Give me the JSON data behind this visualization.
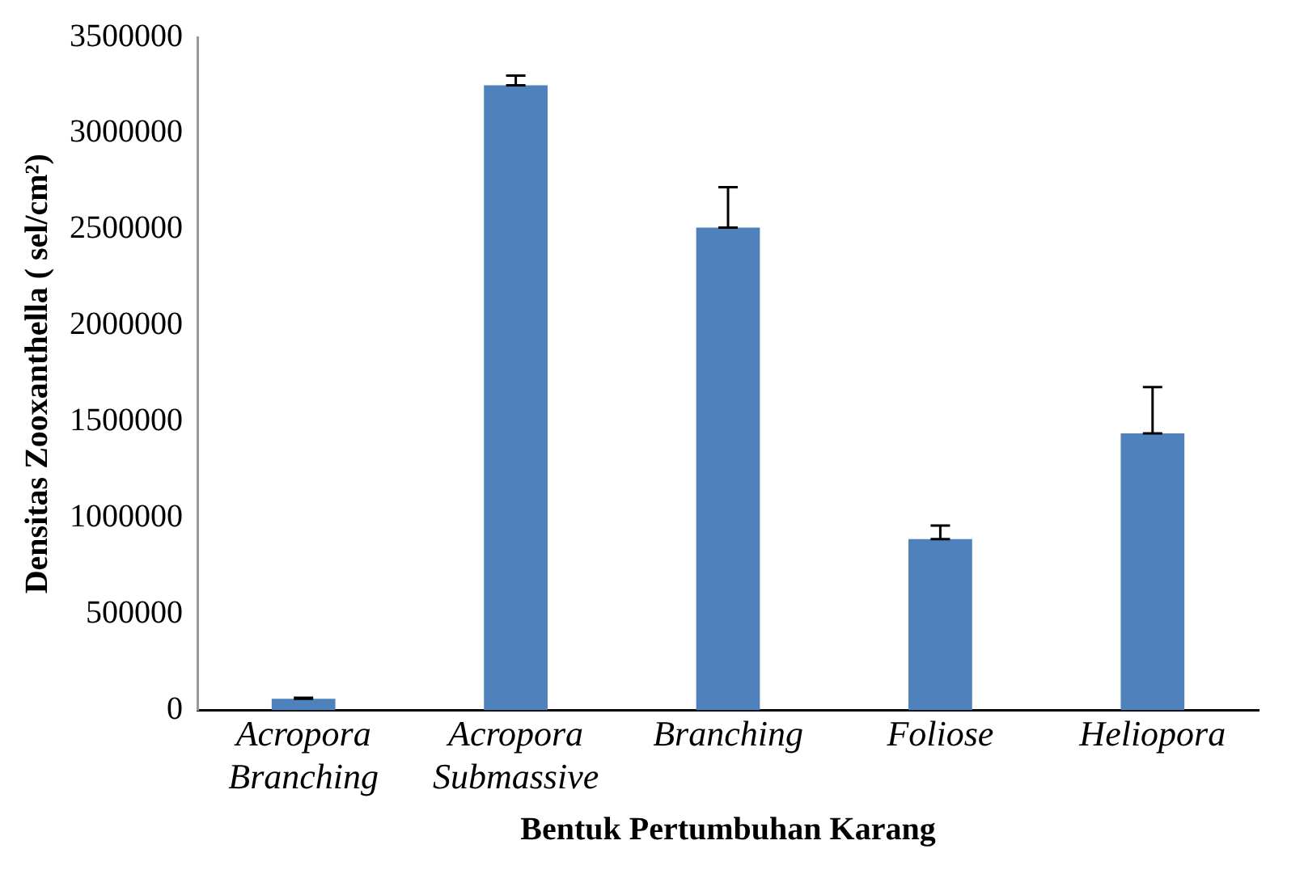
{
  "chart_data": {
    "type": "bar",
    "xlabel": "Bentuk Pertumbuhan Karang",
    "ylabel": "Densitas Zooxanthella ( sel/cm²)",
    "categories": [
      "Acropora Branching",
      "Acropora Submassive",
      "Branching",
      "Foliose",
      "Heliopora"
    ],
    "values": [
      60000,
      3250000,
      2510000,
      890000,
      1440000
    ],
    "errors": [
      [
        60000,
        65000
      ],
      [
        3250000,
        3300000
      ],
      [
        2510000,
        2720000
      ],
      [
        890000,
        960000
      ],
      [
        1440000,
        1680000
      ]
    ],
    "color": "#4f81bd",
    "ylim": [
      0,
      3500000
    ],
    "yticks": [
      0,
      500000,
      1000000,
      1500000,
      2000000,
      2500000,
      3000000,
      3500000
    ],
    "grid": false,
    "legend": false
  }
}
